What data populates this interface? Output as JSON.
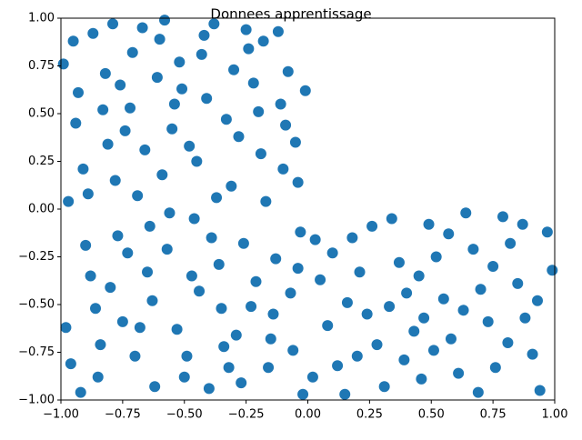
{
  "chart_data": {
    "type": "scatter",
    "title": "Donnees apprentissage",
    "color": "#1f77b4",
    "xlim": [
      -1,
      1
    ],
    "ylim": [
      -1,
      1
    ],
    "xticks": [
      {
        "value": -1,
        "label": "−1.00"
      },
      {
        "value": -0.75,
        "label": "−0.75"
      },
      {
        "value": -0.5,
        "label": "−0.50"
      },
      {
        "value": -0.25,
        "label": "−0.25"
      },
      {
        "value": 0,
        "label": "0.00"
      },
      {
        "value": 0.25,
        "label": "0.25"
      },
      {
        "value": 0.5,
        "label": "0.50"
      },
      {
        "value": 0.75,
        "label": "0.75"
      },
      {
        "value": 1,
        "label": "1.00"
      }
    ],
    "yticks": [
      {
        "value": -1,
        "label": "−1.00"
      },
      {
        "value": -0.75,
        "label": "−0.75"
      },
      {
        "value": -0.5,
        "label": "−0.50"
      },
      {
        "value": -0.25,
        "label": "−0.25"
      },
      {
        "value": 0,
        "label": "0.00"
      },
      {
        "value": 0.25,
        "label": "0.25"
      },
      {
        "value": 0.5,
        "label": "0.50"
      },
      {
        "value": 0.75,
        "label": "0.75"
      },
      {
        "value": 1,
        "label": "1.00"
      }
    ],
    "x": [
      -0.95,
      -0.82,
      -0.67,
      -0.55,
      -0.43,
      -0.31,
      -0.22,
      -0.12,
      -0.05,
      -0.91,
      -0.77,
      -0.63,
      -0.49,
      -0.36,
      -0.27,
      -0.14,
      -0.03,
      -0.98,
      -0.85,
      -0.72,
      -0.59,
      -0.46,
      -0.33,
      -0.19,
      -0.08,
      -0.93,
      -0.81,
      -0.69,
      -0.57,
      -0.44,
      -0.29,
      -0.16,
      -0.02,
      -0.88,
      -0.75,
      -0.62,
      -0.51,
      -0.38,
      -0.24,
      -0.11,
      -0.97,
      -0.84,
      -0.71,
      -0.58,
      -0.45,
      -0.34,
      -0.21,
      -0.07,
      -0.94,
      -0.79,
      -0.66,
      -0.53,
      -0.41,
      -0.28,
      -0.17,
      -0.04,
      -0.9,
      -0.78,
      -0.65,
      -0.52,
      -0.4,
      -0.26,
      -0.13,
      -0.01,
      -0.96,
      -0.83,
      -0.7,
      -0.56,
      -0.42,
      -0.3,
      -0.18,
      -0.06,
      -0.89,
      -0.74,
      -0.61,
      -0.48,
      -0.37,
      -0.23,
      -0.1,
      -0.99,
      -0.86,
      -0.73,
      -0.6,
      -0.47,
      -0.35,
      -0.2,
      -0.09,
      -0.92,
      -0.8,
      -0.68,
      -0.54,
      -0.39,
      -0.25,
      -0.15,
      -0.04,
      -0.87,
      -0.76,
      -0.64,
      -0.5,
      -0.32,
      0.05,
      0.12,
      0.18,
      0.24,
      0.31,
      0.37,
      0.43,
      0.49,
      0.55,
      0.61,
      0.67,
      0.73,
      0.79,
      0.85,
      0.91,
      0.97,
      0.08,
      0.15,
      0.21,
      0.28,
      0.34,
      0.4,
      0.46,
      0.52,
      0.58,
      0.64,
      0.7,
      0.76,
      0.82,
      0.88,
      0.94,
      0.99,
      0.02,
      0.1,
      0.16,
      0.26,
      0.33,
      0.39,
      0.45,
      0.51,
      0.57,
      0.63,
      0.69,
      0.75,
      0.81,
      0.87,
      0.93,
      0.03,
      0.2,
      0.47
    ],
    "values": [
      0.88,
      0.71,
      0.95,
      0.42,
      0.81,
      0.12,
      0.66,
      0.93,
      0.35,
      0.21,
      -0.14,
      -0.48,
      -0.77,
      -0.29,
      -0.91,
      -0.55,
      -0.12,
      -0.62,
      -0.88,
      0.53,
      0.18,
      -0.05,
      0.47,
      0.29,
      0.72,
      0.61,
      0.34,
      0.07,
      -0.21,
      -0.43,
      -0.66,
      -0.83,
      -0.97,
      -0.35,
      -0.59,
      -0.93,
      0.63,
      0.97,
      0.84,
      0.55,
      0.04,
      -0.71,
      0.82,
      0.99,
      0.25,
      -0.72,
      -0.38,
      -0.44,
      0.45,
      0.97,
      0.31,
      -0.63,
      0.58,
      0.38,
      0.04,
      0.14,
      -0.19,
      0.15,
      -0.33,
      0.77,
      -0.94,
      -0.18,
      -0.26,
      0.62,
      -0.81,
      0.52,
      -0.77,
      -0.02,
      0.91,
      0.73,
      0.88,
      -0.74,
      0.08,
      0.41,
      0.69,
      0.33,
      0.06,
      -0.51,
      0.21,
      0.76,
      -0.52,
      -0.23,
      0.89,
      -0.35,
      -0.52,
      0.51,
      0.44,
      -0.96,
      -0.41,
      -0.62,
      0.55,
      -0.15,
      0.94,
      -0.68,
      -0.31,
      0.92,
      0.65,
      -0.09,
      -0.88,
      -0.83,
      -0.37,
      -0.82,
      -0.15,
      -0.55,
      -0.93,
      -0.28,
      -0.64,
      -0.08,
      -0.47,
      -0.86,
      -0.21,
      -0.59,
      -0.04,
      -0.39,
      -0.76,
      -0.12,
      -0.61,
      -0.97,
      -0.33,
      -0.71,
      -0.05,
      -0.44,
      -0.89,
      -0.25,
      -0.68,
      -0.02,
      -0.42,
      -0.83,
      -0.18,
      -0.57,
      -0.95,
      -0.32,
      -0.88,
      -0.23,
      -0.49,
      -0.09,
      -0.51,
      -0.79,
      -0.35,
      -0.74,
      -0.13,
      -0.53,
      -0.96,
      -0.3,
      -0.7,
      -0.08,
      -0.48,
      -0.16,
      -0.77,
      -0.57
    ]
  }
}
